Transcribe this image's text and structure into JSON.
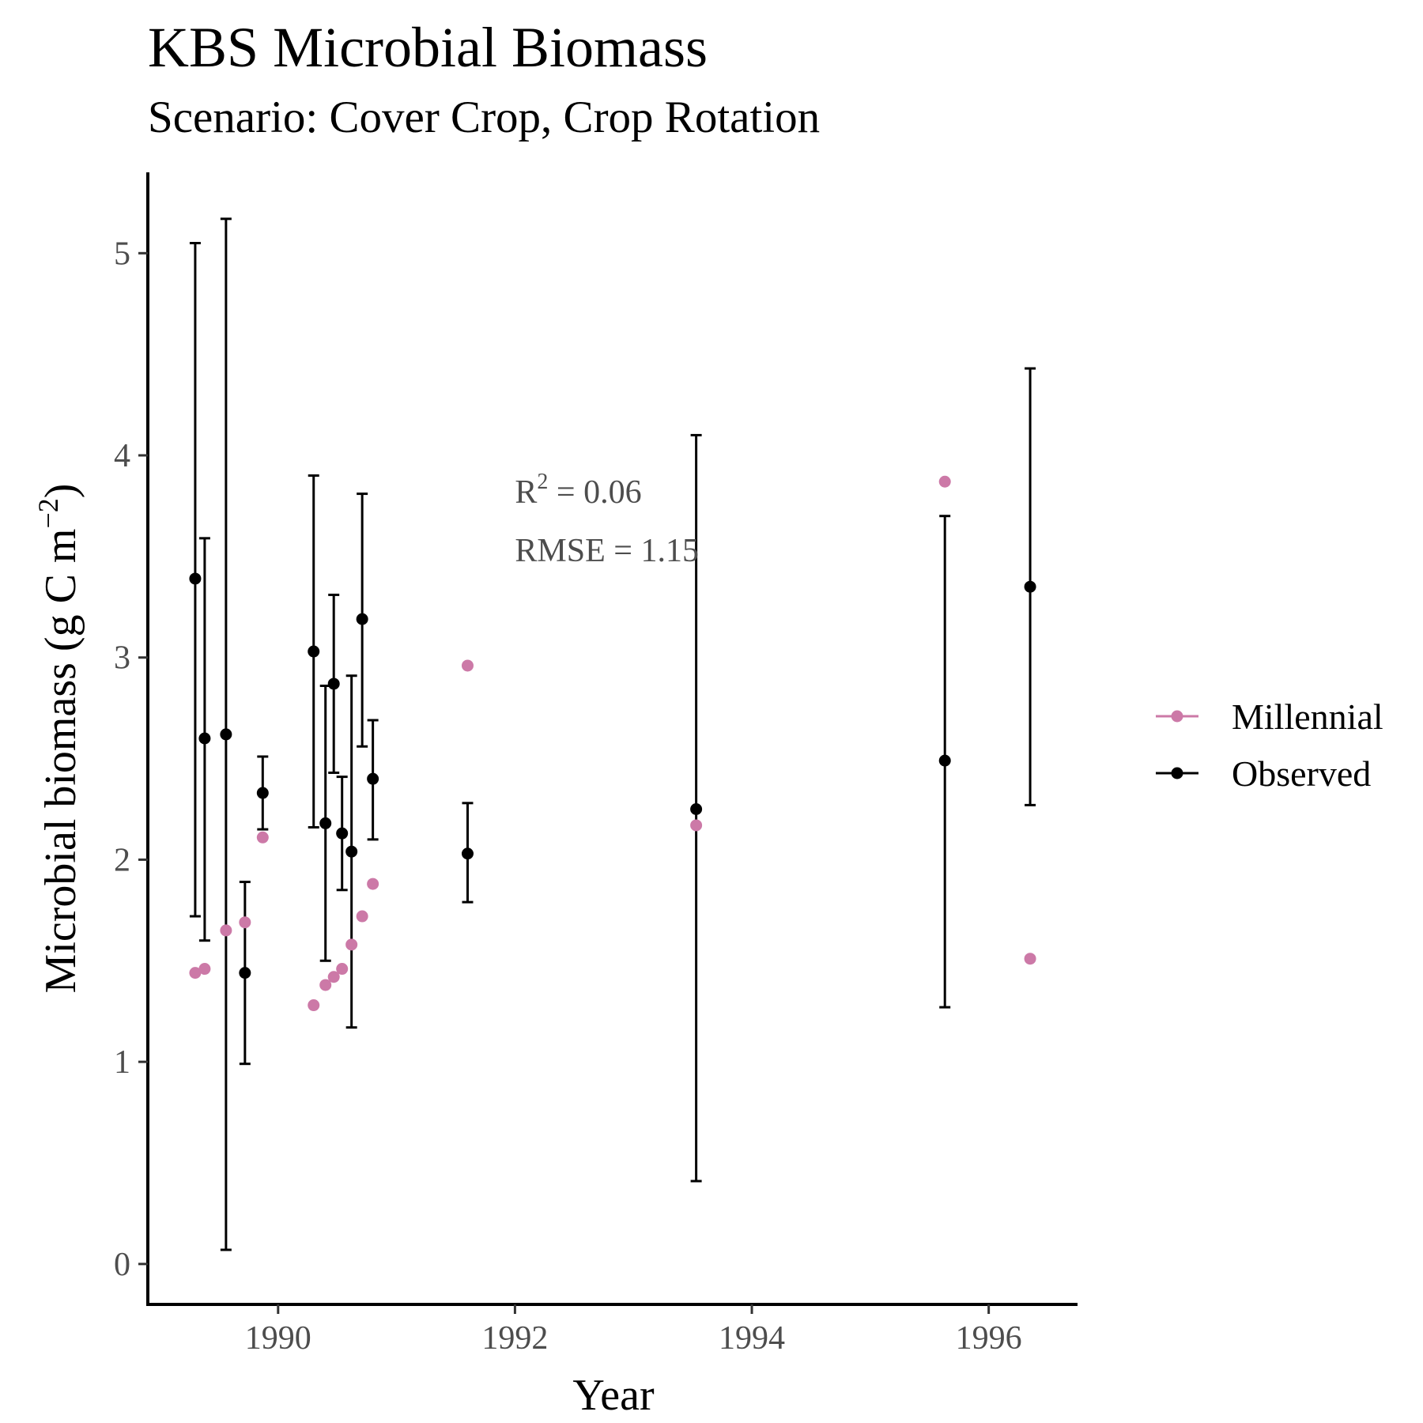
{
  "chart_data": {
    "type": "scatter",
    "title": "KBS Microbial Biomass",
    "subtitle": "Scenario: Cover Crop, Crop Rotation",
    "xlabel": "Year",
    "ylabel": "Microbial biomass (g C m⁻²)",
    "ylabel_main": "Microbial biomass (g C m",
    "ylabel_sup": "−2",
    "ylabel_close": ")",
    "xlim": [
      1988.9,
      1996.75
    ],
    "ylim": [
      -0.2,
      5.4
    ],
    "x_ticks": [
      1990,
      1992,
      1994,
      1996
    ],
    "y_ticks": [
      0,
      1,
      2,
      3,
      4,
      5
    ],
    "grid": false,
    "legend_position": "right",
    "annotations": {
      "r2_prefix": "R",
      "r2_sup": "2",
      "r2_value": " = 0.06",
      "rmse": "RMSE = 1.15",
      "x": 1992.0,
      "y_r2": 3.82,
      "y_rmse": 3.53
    },
    "series": [
      {
        "name": "Millennial",
        "color": "#cc79a7",
        "points": [
          {
            "x": 1989.3,
            "y": 1.44
          },
          {
            "x": 1989.38,
            "y": 1.46
          },
          {
            "x": 1989.56,
            "y": 1.65
          },
          {
            "x": 1989.72,
            "y": 1.69
          },
          {
            "x": 1989.87,
            "y": 2.11
          },
          {
            "x": 1990.3,
            "y": 1.28
          },
          {
            "x": 1990.4,
            "y": 1.38
          },
          {
            "x": 1990.47,
            "y": 1.42
          },
          {
            "x": 1990.54,
            "y": 1.46
          },
          {
            "x": 1990.62,
            "y": 1.58
          },
          {
            "x": 1990.71,
            "y": 1.72
          },
          {
            "x": 1990.8,
            "y": 1.88
          },
          {
            "x": 1991.6,
            "y": 2.96
          },
          {
            "x": 1993.53,
            "y": 2.17
          },
          {
            "x": 1995.63,
            "y": 3.87
          },
          {
            "x": 1996.35,
            "y": 1.51
          }
        ]
      },
      {
        "name": "Observed",
        "color": "#000000",
        "points": [
          {
            "x": 1989.3,
            "y": 3.39,
            "ymin": 1.72,
            "ymax": 5.05
          },
          {
            "x": 1989.38,
            "y": 2.6,
            "ymin": 1.6,
            "ymax": 3.59
          },
          {
            "x": 1989.56,
            "y": 2.62,
            "ymin": 0.07,
            "ymax": 5.17
          },
          {
            "x": 1989.72,
            "y": 1.44,
            "ymin": 0.99,
            "ymax": 1.89
          },
          {
            "x": 1989.87,
            "y": 2.33,
            "ymin": 2.15,
            "ymax": 2.51
          },
          {
            "x": 1990.3,
            "y": 3.03,
            "ymin": 2.16,
            "ymax": 3.9
          },
          {
            "x": 1990.4,
            "y": 2.18,
            "ymin": 1.5,
            "ymax": 2.86
          },
          {
            "x": 1990.47,
            "y": 2.87,
            "ymin": 2.43,
            "ymax": 3.31
          },
          {
            "x": 1990.54,
            "y": 2.13,
            "ymin": 1.85,
            "ymax": 2.41
          },
          {
            "x": 1990.62,
            "y": 2.04,
            "ymin": 1.17,
            "ymax": 2.91
          },
          {
            "x": 1990.71,
            "y": 3.19,
            "ymin": 2.56,
            "ymax": 3.81
          },
          {
            "x": 1990.8,
            "y": 2.4,
            "ymin": 2.1,
            "ymax": 2.69
          },
          {
            "x": 1991.6,
            "y": 2.03,
            "ymin": 1.79,
            "ymax": 2.28
          },
          {
            "x": 1993.53,
            "y": 2.25,
            "ymin": 0.41,
            "ymax": 4.1
          },
          {
            "x": 1995.63,
            "y": 2.49,
            "ymin": 1.27,
            "ymax": 3.7
          },
          {
            "x": 1996.35,
            "y": 3.35,
            "ymin": 2.27,
            "ymax": 4.43
          }
        ]
      }
    ]
  }
}
